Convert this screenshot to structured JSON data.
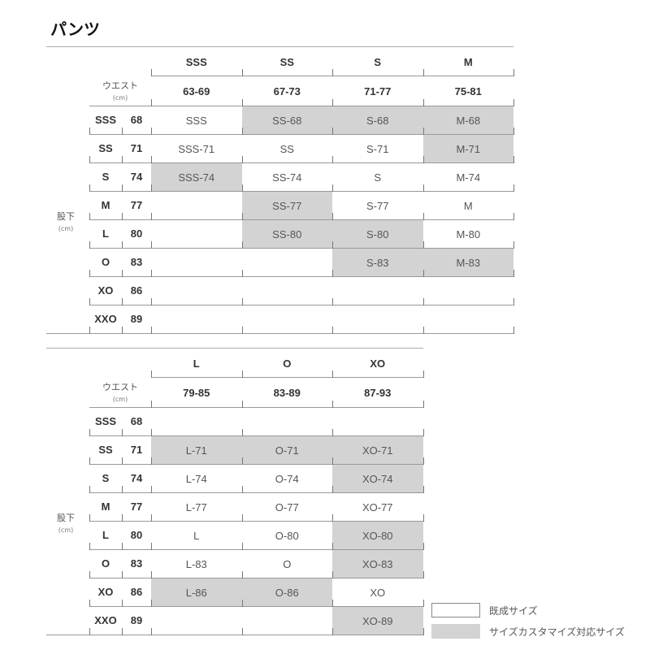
{
  "title": "パンツ",
  "labels": {
    "waist": "ウエスト",
    "inseam": "股下",
    "unit": "(cm)"
  },
  "colors": {
    "custom": "#d3d3d3",
    "standard": "#ffffff"
  },
  "rows": [
    {
      "size": "SSS",
      "cm": "68"
    },
    {
      "size": "SS",
      "cm": "71"
    },
    {
      "size": "S",
      "cm": "74"
    },
    {
      "size": "M",
      "cm": "77"
    },
    {
      "size": "L",
      "cm": "80"
    },
    {
      "size": "O",
      "cm": "83"
    },
    {
      "size": "XO",
      "cm": "86"
    },
    {
      "size": "XXO",
      "cm": "89"
    }
  ],
  "tables": [
    {
      "columns": [
        {
          "size": "SSS",
          "range": "63-69"
        },
        {
          "size": "SS",
          "range": "67-73"
        },
        {
          "size": "S",
          "range": "71-77"
        },
        {
          "size": "M",
          "range": "75-81"
        }
      ],
      "cells": [
        [
          {
            "t": "SSS",
            "c": false
          },
          {
            "t": "SS-68",
            "c": true
          },
          {
            "t": "S-68",
            "c": true
          },
          {
            "t": "M-68",
            "c": true
          }
        ],
        [
          {
            "t": "SSS-71",
            "c": false
          },
          {
            "t": "SS",
            "c": false
          },
          {
            "t": "S-71",
            "c": false
          },
          {
            "t": "M-71",
            "c": true
          }
        ],
        [
          {
            "t": "SSS-74",
            "c": true
          },
          {
            "t": "SS-74",
            "c": false
          },
          {
            "t": "S",
            "c": false
          },
          {
            "t": "M-74",
            "c": false
          }
        ],
        [
          {
            "t": "",
            "c": false
          },
          {
            "t": "SS-77",
            "c": true
          },
          {
            "t": "S-77",
            "c": false
          },
          {
            "t": "M",
            "c": false
          }
        ],
        [
          {
            "t": "",
            "c": false
          },
          {
            "t": "SS-80",
            "c": true
          },
          {
            "t": "S-80",
            "c": true
          },
          {
            "t": "M-80",
            "c": false
          }
        ],
        [
          {
            "t": "",
            "c": false
          },
          {
            "t": "",
            "c": false
          },
          {
            "t": "S-83",
            "c": true
          },
          {
            "t": "M-83",
            "c": true
          }
        ],
        [
          {
            "t": "",
            "c": false
          },
          {
            "t": "",
            "c": false
          },
          {
            "t": "",
            "c": false
          },
          {
            "t": "",
            "c": false
          }
        ],
        [
          {
            "t": "",
            "c": false
          },
          {
            "t": "",
            "c": false
          },
          {
            "t": "",
            "c": false
          },
          {
            "t": "",
            "c": false
          }
        ]
      ]
    },
    {
      "columns": [
        {
          "size": "L",
          "range": "79-85"
        },
        {
          "size": "O",
          "range": "83-89"
        },
        {
          "size": "XO",
          "range": "87-93"
        }
      ],
      "cells": [
        [
          {
            "t": "",
            "c": false
          },
          {
            "t": "",
            "c": false
          },
          {
            "t": "",
            "c": false
          }
        ],
        [
          {
            "t": "L-71",
            "c": true
          },
          {
            "t": "O-71",
            "c": true
          },
          {
            "t": "XO-71",
            "c": true
          }
        ],
        [
          {
            "t": "L-74",
            "c": false
          },
          {
            "t": "O-74",
            "c": false
          },
          {
            "t": "XO-74",
            "c": true
          }
        ],
        [
          {
            "t": "L-77",
            "c": false
          },
          {
            "t": "O-77",
            "c": false
          },
          {
            "t": "XO-77",
            "c": false
          }
        ],
        [
          {
            "t": "L",
            "c": false
          },
          {
            "t": "O-80",
            "c": false
          },
          {
            "t": "XO-80",
            "c": true
          }
        ],
        [
          {
            "t": "L-83",
            "c": false
          },
          {
            "t": "O",
            "c": false
          },
          {
            "t": "XO-83",
            "c": true
          }
        ],
        [
          {
            "t": "L-86",
            "c": true
          },
          {
            "t": "O-86",
            "c": true
          },
          {
            "t": "XO",
            "c": false
          }
        ],
        [
          {
            "t": "",
            "c": false
          },
          {
            "t": "",
            "c": false
          },
          {
            "t": "XO-89",
            "c": true
          }
        ]
      ]
    }
  ],
  "legend": [
    {
      "label": "既成サイズ",
      "custom": false
    },
    {
      "label": "サイズカスタマイズ対応サイズ",
      "custom": true
    }
  ]
}
